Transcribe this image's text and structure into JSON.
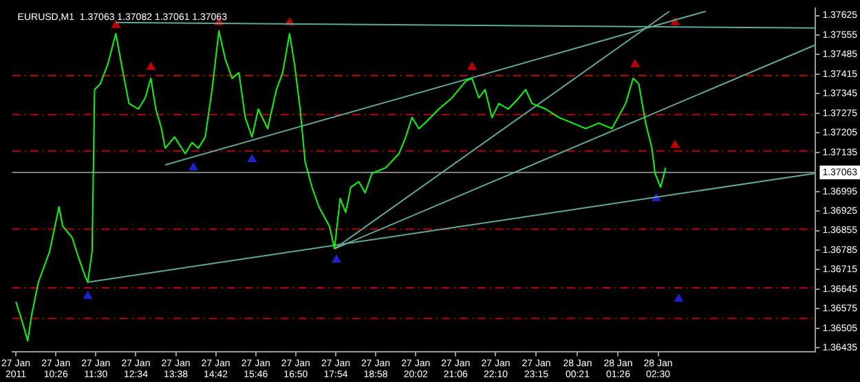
{
  "chart_data": {
    "type": "line",
    "title": "EURUSD,M1  1.37063 1.37082 1.37061 1.37063",
    "xlim": [
      "2011-01-27T09:16",
      "2011-01-28T06:42"
    ],
    "ylim": [
      1.3642,
      1.3765
    ],
    "xticks": [
      {
        "value": "2011-01-27T09:22",
        "label": "27 Jan 2011"
      },
      {
        "value": "2011-01-27T10:26",
        "label": "27 Jan 10:26"
      },
      {
        "value": "2011-01-27T11:30",
        "label": "27 Jan 11:30"
      },
      {
        "value": "2011-01-27T12:34",
        "label": "27 Jan 12:34"
      },
      {
        "value": "2011-01-27T13:38",
        "label": "27 Jan 13:38"
      },
      {
        "value": "2011-01-27T14:42",
        "label": "27 Jan 14:42"
      },
      {
        "value": "2011-01-27T15:46",
        "label": "27 Jan 15:46"
      },
      {
        "value": "2011-01-27T16:50",
        "label": "27 Jan 16:50"
      },
      {
        "value": "2011-01-27T17:54",
        "label": "27 Jan 17:54"
      },
      {
        "value": "2011-01-27T18:58",
        "label": "27 Jan 18:58"
      },
      {
        "value": "2011-01-27T20:02",
        "label": "27 Jan 20:02"
      },
      {
        "value": "2011-01-27T21:06",
        "label": "27 Jan 21:06"
      },
      {
        "value": "2011-01-27T22:10",
        "label": "27 Jan 22:10"
      },
      {
        "value": "2011-01-27T23:15",
        "label": "27 Jan 23:15"
      },
      {
        "value": "2011-01-28T00:21",
        "label": "28 Jan 00:21"
      },
      {
        "value": "2011-01-28T01:26",
        "label": "28 Jan 01:26"
      },
      {
        "value": "2011-01-28T02:30",
        "label": "28 Jan 02:30"
      }
    ],
    "yticks": [
      1.37625,
      1.37555,
      1.37485,
      1.37415,
      1.37345,
      1.37275,
      1.37205,
      1.37135,
      1.36995,
      1.36925,
      1.36855,
      1.36785,
      1.36715,
      1.36645,
      1.36575,
      1.36505,
      1.36435
    ],
    "grid": false,
    "legend": false,
    "ref_lines": [
      {
        "axis": "y",
        "value": 1.3741,
        "color": "#c00000",
        "line_style": "dashed"
      },
      {
        "axis": "y",
        "value": 1.3727,
        "color": "#c00000",
        "line_style": "dashed"
      },
      {
        "axis": "y",
        "value": 1.3714,
        "color": "#c00000",
        "line_style": "dashed"
      },
      {
        "axis": "y",
        "value": 1.3686,
        "color": "#c00000",
        "line_style": "dashed"
      },
      {
        "axis": "y",
        "value": 1.3665,
        "color": "#c00000",
        "line_style": "dashed"
      },
      {
        "axis": "y",
        "value": 1.3654,
        "color": "#c00000",
        "line_style": "dashed"
      },
      {
        "axis": "y",
        "value": 1.37063,
        "label": "1.37063",
        "color": "#808080",
        "line_style": "solid"
      }
    ],
    "series": [
      {
        "type": "line",
        "color": "#00ff00",
        "marker": "none",
        "x": [
          "2011-01-27T09:22",
          "2011-01-27T09:32",
          "2011-01-27T09:41",
          "2011-01-27T09:47",
          "2011-01-27T09:58",
          "2011-01-27T10:16",
          "2011-01-27T10:31",
          "2011-01-27T10:37",
          "2011-01-27T10:52",
          "2011-01-27T11:02",
          "2011-01-27T11:13",
          "2011-01-27T11:17",
          "2011-01-27T11:24",
          "2011-01-27T11:28",
          "2011-01-27T11:37",
          "2011-01-27T11:49",
          "2011-01-27T12:02",
          "2011-01-27T12:11",
          "2011-01-27T12:23",
          "2011-01-27T12:38",
          "2011-01-27T12:49",
          "2011-01-27T12:58",
          "2011-01-27T13:06",
          "2011-01-27T13:15",
          "2011-01-27T13:21",
          "2011-01-27T13:36",
          "2011-01-27T13:53",
          "2011-01-27T14:04",
          "2011-01-27T14:14",
          "2011-01-27T14:25",
          "2011-01-27T14:36",
          "2011-01-27T14:47",
          "2011-01-27T14:57",
          "2011-01-27T15:08",
          "2011-01-27T15:19",
          "2011-01-27T15:29",
          "2011-01-27T15:40",
          "2011-01-27T15:50",
          "2011-01-27T16:05",
          "2011-01-27T16:19",
          "2011-01-27T16:29",
          "2011-01-27T16:40",
          "2011-01-27T16:48",
          "2011-01-27T16:57",
          "2011-01-27T17:05",
          "2011-01-27T17:16",
          "2011-01-27T17:27",
          "2011-01-27T17:44",
          "2011-01-27T17:52",
          "2011-01-27T18:01",
          "2011-01-27T18:10",
          "2011-01-27T18:18",
          "2011-01-27T18:31",
          "2011-01-27T18:41",
          "2011-01-27T18:52",
          "2011-01-27T19:14",
          "2011-01-27T19:35",
          "2011-01-27T19:46",
          "2011-01-27T19:56",
          "2011-01-27T20:07",
          "2011-01-27T20:17",
          "2011-01-27T20:39",
          "2011-01-27T21:00",
          "2011-01-27T21:22",
          "2011-01-27T21:32",
          "2011-01-27T21:43",
          "2011-01-27T21:53",
          "2011-01-27T22:04",
          "2011-01-27T22:15",
          "2011-01-27T22:30",
          "2011-01-27T22:47",
          "2011-01-27T22:58",
          "2011-01-27T23:08",
          "2011-01-27T23:30",
          "2011-01-27T23:51",
          "2011-01-28T00:13",
          "2011-01-28T00:34",
          "2011-01-28T00:55",
          "2011-01-28T01:16",
          "2011-01-28T01:38",
          "2011-01-28T01:50",
          "2011-01-28T01:59",
          "2011-01-28T02:10",
          "2011-01-28T02:20",
          "2011-01-28T02:25",
          "2011-01-28T02:34",
          "2011-01-28T02:42"
        ],
        "values": [
          1.366,
          1.3653,
          1.3646,
          1.3655,
          1.3667,
          1.3678,
          1.3694,
          1.3687,
          1.3683,
          1.3676,
          1.3669,
          1.3667,
          1.3678,
          1.3736,
          1.3738,
          1.3745,
          1.3756,
          1.3745,
          1.3731,
          1.3729,
          1.3733,
          1.374,
          1.3729,
          1.3722,
          1.3715,
          1.3719,
          1.3713,
          1.3717,
          1.3715,
          1.3719,
          1.3736,
          1.3757,
          1.3747,
          1.374,
          1.3742,
          1.3726,
          1.3719,
          1.3729,
          1.3722,
          1.3736,
          1.3742,
          1.3756,
          1.3745,
          1.3729,
          1.371,
          1.3701,
          1.3694,
          1.3687,
          1.3679,
          1.3697,
          1.3692,
          1.3701,
          1.3703,
          1.3699,
          1.3706,
          1.3708,
          1.3713,
          1.3719,
          1.3726,
          1.3722,
          1.3724,
          1.3729,
          1.3733,
          1.3739,
          1.374,
          1.3733,
          1.3736,
          1.3726,
          1.3731,
          1.3729,
          1.3733,
          1.3736,
          1.3731,
          1.3729,
          1.3726,
          1.3724,
          1.3722,
          1.3724,
          1.3722,
          1.3731,
          1.374,
          1.3738,
          1.3724,
          1.3715,
          1.3706,
          1.3701,
          1.3708
        ]
      },
      {
        "type": "line",
        "color": "#5fa89a",
        "marker": "none",
        "x": [
          "2011-01-27T12:02",
          "2011-01-28T06:42"
        ],
        "values": [
          1.376,
          1.3758
        ]
      },
      {
        "type": "line",
        "color": "#5fa89a",
        "marker": "none",
        "x": [
          "2011-01-27T13:21",
          "2011-01-28T03:46"
        ],
        "values": [
          1.3709,
          1.3764
        ]
      },
      {
        "type": "line",
        "color": "#5fa89a",
        "marker": "none",
        "x": [
          "2011-01-27T17:52",
          "2011-01-28T02:48"
        ],
        "values": [
          1.3679,
          1.3764
        ]
      },
      {
        "type": "line",
        "color": "#5fa89a",
        "marker": "none",
        "x": [
          "2011-01-27T17:52",
          "2011-01-28T06:42"
        ],
        "values": [
          1.3679,
          1.3752
        ]
      },
      {
        "type": "line",
        "color": "#5fa89a",
        "marker": "none",
        "x": [
          "2011-01-27T11:17",
          "2011-01-28T06:42"
        ],
        "values": [
          1.3667,
          1.3706
        ]
      },
      {
        "type": "scatter",
        "color": "#c00000",
        "marker": "triangle",
        "x": [
          "2011-01-27T12:02",
          "2011-01-27T12:58",
          "2011-01-27T14:47",
          "2011-01-27T16:40",
          "2011-01-27T21:32",
          "2011-01-28T01:53",
          "2011-01-28T02:57",
          "2011-01-28T02:57"
        ],
        "values": [
          1.3759,
          1.3744,
          1.376,
          1.376,
          1.3744,
          1.3745,
          1.376,
          1.3716
        ]
      },
      {
        "type": "scatter",
        "color": "#2020d0",
        "marker": "triangle",
        "x": [
          "2011-01-27T11:17",
          "2011-01-27T14:06",
          "2011-01-27T15:40",
          "2011-01-27T17:55",
          "2011-01-28T02:27",
          "2011-01-28T03:03"
        ],
        "values": [
          1.3662,
          1.3708,
          1.3711,
          1.3675,
          1.3697,
          1.3661
        ]
      }
    ]
  }
}
